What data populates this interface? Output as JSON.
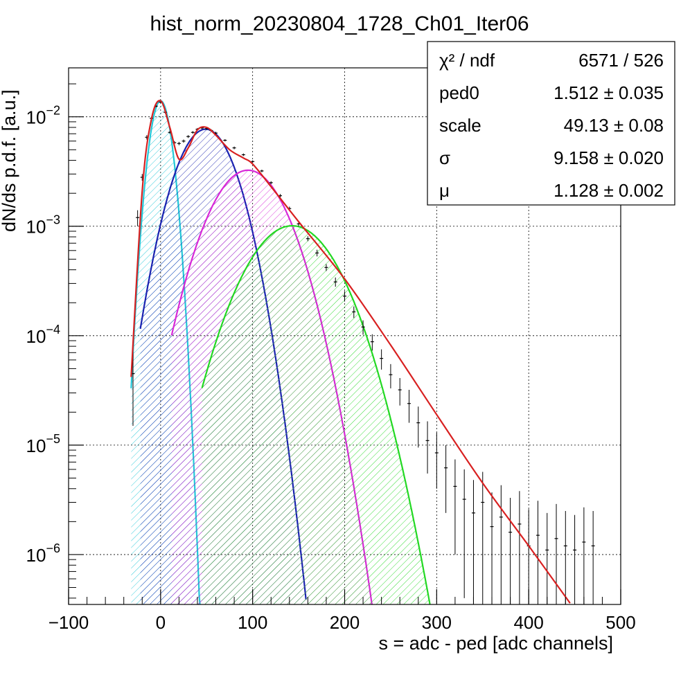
{
  "chart_data": {
    "type": "line",
    "title": "hist_norm_20230804_1728_Ch01_Iter06",
    "xlabel": "s = adc - ped [adc channels]",
    "ylabel": "dN/ds p.d.f. [a.u.]",
    "xlim": [
      -100,
      500
    ],
    "ylim": [
      3.5e-07,
      0.028
    ],
    "yscale": "log",
    "grid": true,
    "x_ticks": [
      {
        "v": -100,
        "label": "−100"
      },
      {
        "v": 0,
        "label": "0"
      },
      {
        "v": 100,
        "label": "100"
      },
      {
        "v": 200,
        "label": "200"
      },
      {
        "v": 300,
        "label": "300"
      },
      {
        "v": 400,
        "label": "400"
      },
      {
        "v": 500,
        "label": "500"
      }
    ],
    "y_ticks": [
      {
        "v": 1e-06,
        "base": "10",
        "exp": "−6"
      },
      {
        "v": 1e-05,
        "base": "10",
        "exp": "−5"
      },
      {
        "v": 0.0001,
        "base": "10",
        "exp": "−4"
      },
      {
        "v": 0.001,
        "base": "10",
        "exp": "−3"
      },
      {
        "v": 0.01,
        "base": "10",
        "exp": "−2"
      }
    ],
    "stats_box": {
      "rows": [
        {
          "name": "χ² / ndf",
          "value": "6571 / 526"
        },
        {
          "name": "ped0",
          "value": "1.512 ± 0.035"
        },
        {
          "name": "scale",
          "value": "49.13 ± 0.08"
        },
        {
          "name": "σ",
          "value": "9.158 ± 0.020"
        },
        {
          "name": "μ",
          "value": "1.128 ± 0.002"
        }
      ]
    },
    "components": [
      {
        "color": "#22c8d8",
        "peak_x": 0,
        "peak_y": 0.014,
        "sigma": 9.2,
        "x_range": [
          -32,
          46
        ]
      },
      {
        "color": "#1a22b0",
        "peak_x": 49,
        "peak_y": 0.0077,
        "sigma": 24.5,
        "x_range": [
          -22,
          158
        ]
      },
      {
        "color": "#d828d8",
        "peak_x": 95,
        "peak_y": 0.00325,
        "sigma": 31.5,
        "x_range": [
          12,
          235
        ]
      },
      {
        "color": "#22d822",
        "peak_x": 143,
        "peak_y": 0.00101,
        "sigma": 37.5,
        "x_range": [
          45,
          298
        ]
      }
    ],
    "fit_total": {
      "color": "#d82020",
      "x": [
        -32,
        -20,
        -10,
        0,
        10,
        20,
        30,
        40,
        50,
        60,
        75,
        90,
        100,
        120,
        150,
        200,
        250,
        300,
        350,
        400,
        445
      ],
      "y": [
        4.2e-05,
        0.0021,
        0.0095,
        0.014,
        0.008,
        0.0041,
        0.0052,
        0.0076,
        0.008,
        0.0068,
        0.005,
        0.0042,
        0.0037,
        0.0023,
        0.0011,
        0.00033,
        8.2e-05,
        1.9e-05,
        4.5e-06,
        1.2e-06,
        3.6e-07
      ]
    },
    "data_points": {
      "color": "#000000",
      "x": [
        -30,
        -25,
        -20,
        -15,
        -10,
        -5,
        0,
        5,
        10,
        15,
        20,
        25,
        30,
        35,
        40,
        45,
        50,
        55,
        60,
        70,
        80,
        90,
        100,
        110,
        120,
        130,
        140,
        150,
        160,
        170,
        180,
        190,
        200,
        210,
        220,
        230,
        240,
        250,
        260,
        270,
        280,
        290,
        300,
        310,
        320,
        330,
        340,
        350,
        360,
        370,
        380,
        390,
        400,
        410,
        420,
        430,
        440,
        450,
        460,
        470
      ],
      "y": [
        4.5e-05,
        0.0012,
        0.0028,
        0.0065,
        0.0097,
        0.0125,
        0.0136,
        0.011,
        0.0072,
        0.0058,
        0.0057,
        0.006,
        0.0066,
        0.0072,
        0.0077,
        0.0079,
        0.0078,
        0.0075,
        0.0071,
        0.0061,
        0.0052,
        0.0045,
        0.0039,
        0.0032,
        0.0025,
        0.0019,
        0.00145,
        0.00105,
        0.00077,
        0.00057,
        0.00042,
        0.00031,
        0.00023,
        0.000165,
        0.00012,
        8.8e-05,
        6.2e-05,
        4.4e-05,
        3.2e-05,
        2.4e-05,
        1.6e-05,
        1.1e-05,
        8.5e-06,
        6.2e-06,
        4.2e-06,
        3.2e-06,
        2.4e-06,
        3e-06,
        1.8e-06,
        2.2e-06,
        1.6e-06,
        1.9e-06,
        1.2e-06,
        1.5e-06,
        1.1e-06,
        1.4e-06,
        1.2e-06,
        1.1e-06,
        1.3e-06,
        1.2e-06
      ],
      "err": [
        3e-05,
        0.0002,
        0.0002,
        0.0003,
        0.0003,
        0.0003,
        0.0003,
        0.0003,
        0.0002,
        0.0002,
        0.0002,
        0.0002,
        0.0002,
        0.0002,
        0.0002,
        0.0002,
        0.0002,
        0.0002,
        0.0002,
        0.00015,
        0.00015,
        0.00012,
        0.0001,
        9e-05,
        8e-05,
        7e-05,
        6e-05,
        5e-05,
        4e-05,
        4e-05,
        3e-05,
        3e-05,
        2.5e-05,
        2e-05,
        1.8e-05,
        1.5e-05,
        1.3e-05,
        1.1e-05,
        9e-06,
        8e-06,
        6.5e-06,
        5.5e-06,
        4.5e-06,
        3.8e-06,
        3.2e-06,
        2.8e-06,
        2.4e-06,
        2.7e-06,
        1.9e-06,
        2.1e-06,
        1.7e-06,
        1.9e-06,
        1.4e-06,
        1.6e-06,
        1.3e-06,
        1.5e-06,
        1.3e-06,
        1.2e-06,
        1.4e-06,
        1.3e-06
      ]
    }
  }
}
